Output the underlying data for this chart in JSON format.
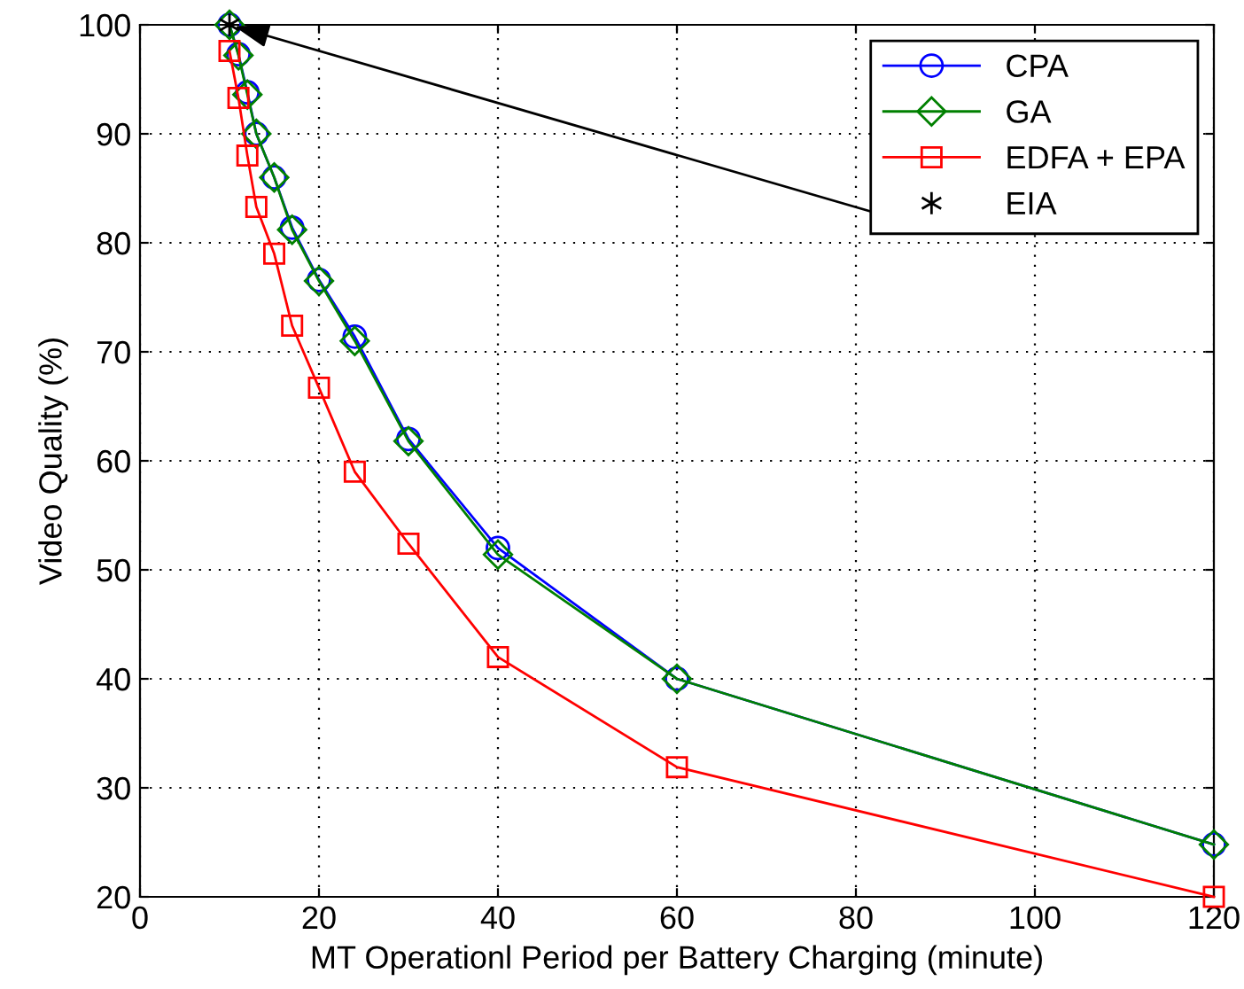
{
  "chart_data": {
    "type": "line",
    "xlabel": "MT Operationl Period per Battery Charging (minute)",
    "ylabel": "Video Quality (%)",
    "x": [
      10,
      11,
      12,
      13,
      15,
      17,
      20,
      24,
      30,
      40,
      60,
      120
    ],
    "series": [
      {
        "name": "CPA",
        "color": "#0000ff",
        "marker": "circle",
        "values": [
          100,
          97.3,
          93.8,
          90,
          86,
          81.4,
          76.6,
          71.4,
          62,
          52,
          40,
          24.8
        ]
      },
      {
        "name": "GA",
        "color": "#008000",
        "marker": "diamond",
        "values": [
          100,
          97.2,
          93.6,
          90,
          86,
          81.2,
          76.5,
          71,
          61.8,
          51.4,
          40,
          24.8
        ]
      },
      {
        "name": "EDFA + EPA",
        "color": "#ff0000",
        "marker": "square",
        "values": [
          97.6,
          93.3,
          88,
          83.3,
          79,
          72.4,
          66.7,
          59,
          52.4,
          42,
          31.9,
          20
        ]
      },
      {
        "name": "EIA",
        "type": "scatter",
        "color": "#000000",
        "marker": "cross",
        "x": [
          10
        ],
        "values": [
          100
        ]
      }
    ],
    "xlim": [
      0,
      120
    ],
    "xticks": [
      0,
      20,
      40,
      60,
      80,
      100,
      120
    ],
    "ylim": [
      20,
      100
    ],
    "yticks": [
      20,
      30,
      40,
      50,
      60,
      70,
      80,
      90,
      100
    ],
    "grid": true,
    "legend": "top right"
  }
}
